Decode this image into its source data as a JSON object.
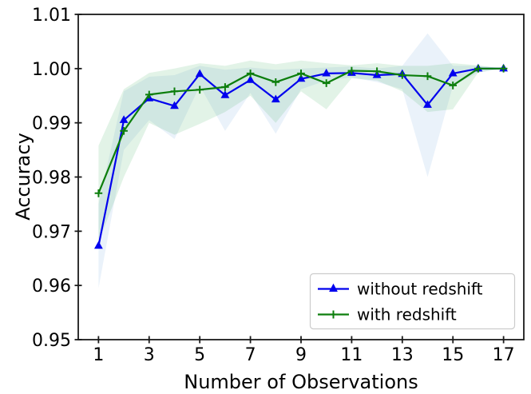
{
  "chart_data": {
    "type": "line",
    "title": "",
    "xlabel": "Number of Observations",
    "ylabel": "Accuracy",
    "x": [
      1,
      2,
      3,
      4,
      5,
      6,
      7,
      8,
      9,
      10,
      11,
      12,
      13,
      14,
      15,
      16,
      17
    ],
    "xlim": [
      0.2,
      17.8
    ],
    "ylim": [
      0.95,
      1.01
    ],
    "xticks": [
      1,
      3,
      5,
      7,
      9,
      11,
      13,
      15,
      17
    ],
    "xtick_labels": [
      "1",
      "3",
      "5",
      "7",
      "9",
      "11",
      "13",
      "15",
      "17"
    ],
    "yticks": [
      0.95,
      0.96,
      0.97,
      0.98,
      0.99,
      1.0,
      1.01
    ],
    "ytick_labels": [
      "0.95",
      "0.96",
      "0.97",
      "0.98",
      "0.99",
      "1.00",
      "1.01"
    ],
    "grid": false,
    "legend": {
      "position": "lower right",
      "entries": [
        "without redshift",
        "with redshift"
      ]
    },
    "axis_color": "#1a1a1a",
    "series": [
      {
        "name": "without redshift",
        "color": "#0000ee",
        "marker": "triangle-up",
        "values": [
          0.9673,
          0.9905,
          0.9945,
          0.9931,
          0.999,
          0.9951,
          0.9979,
          0.9943,
          0.9981,
          0.9991,
          0.9992,
          0.9988,
          0.999,
          0.9933,
          0.9991,
          1.0,
          1.0
        ],
        "band_lower": [
          0.9595,
          0.985,
          0.9905,
          0.987,
          0.9968,
          0.9885,
          0.9955,
          0.988,
          0.9962,
          0.9978,
          0.9984,
          0.9975,
          0.9962,
          0.98,
          0.9968,
          0.9993,
          1.0
        ],
        "band_upper": [
          0.975,
          0.9958,
          0.9985,
          0.9988,
          1.0005,
          0.9998,
          1.0002,
          0.9998,
          1.0,
          1.0002,
          1.0004,
          1.0,
          1.0005,
          1.0065,
          1.0005,
          1.0005,
          1.0
        ],
        "band_color": "#5b9bd5",
        "band_opacity": 0.13
      },
      {
        "name": "with redshift",
        "color": "#0c7e0c",
        "marker": "plus",
        "values": [
          0.977,
          0.9885,
          0.9952,
          0.9958,
          0.9961,
          0.9966,
          0.9991,
          0.9975,
          0.9991,
          0.9973,
          0.9996,
          0.9995,
          0.9988,
          0.9986,
          0.9969,
          1.0,
          1.0
        ],
        "band_lower": [
          0.968,
          0.98,
          0.99,
          0.9878,
          0.9898,
          0.992,
          0.995,
          0.99,
          0.9958,
          0.9925,
          0.9982,
          0.9978,
          0.9958,
          0.992,
          0.9925,
          0.9993,
          1.0
        ],
        "band_upper": [
          0.9858,
          0.9962,
          0.9992,
          1.0,
          1.001,
          1.0005,
          1.0015,
          1.0008,
          1.0015,
          1.001,
          1.0006,
          1.001,
          1.0005,
          1.0005,
          1.001,
          1.0006,
          1.0
        ],
        "band_color": "#34a853",
        "band_opacity": 0.14
      }
    ]
  }
}
